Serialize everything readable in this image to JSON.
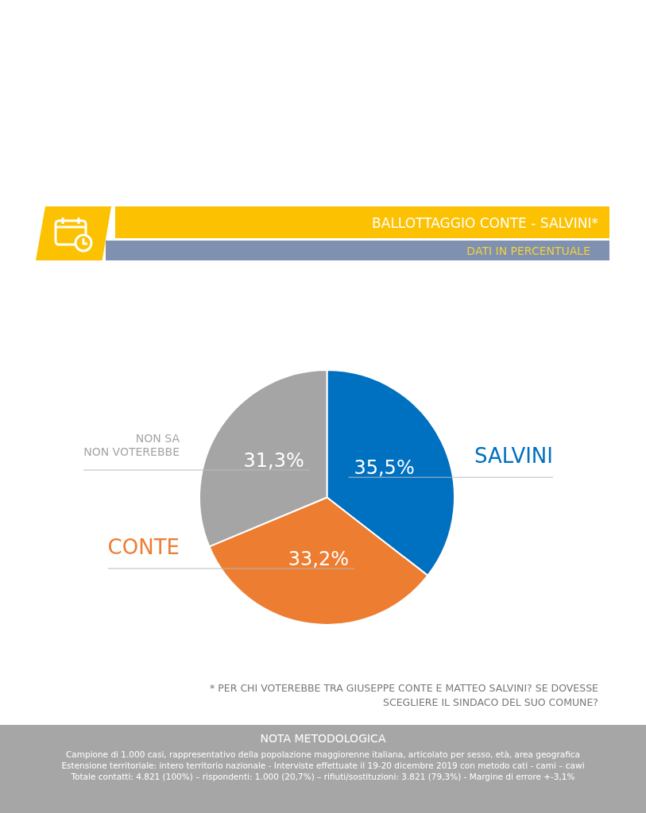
{
  "chart_data": {
    "type": "pie",
    "title": "BALLOTTAGGIO CONTE -  SALVINI*",
    "subtitle": "DATI IN PERCENTUALE",
    "categories": [
      "SALVINI",
      "CONTE",
      "NON SA NON VOTEREBBE"
    ],
    "values": [
      35.5,
      33.2,
      31.3
    ],
    "colors": [
      "#0070c0",
      "#ed7d31",
      "#a5a5a5"
    ],
    "value_labels": [
      "35,5%",
      "33,2%",
      "31,3%"
    ],
    "legend": false,
    "annotations": [
      "* PER CHI VOTEREBBE TRA GIUSEPPE CONTE E MATTEO SALVINI? SE DOVESSE SCEGLIERE IL SINDACO DEL SUO COMUNE?",
      "NOTA METODOLOGICA",
      "Campione di 1.000 casi, rappresentativo della popolazione maggiorenne italiana, articolato per sesso, età, area geografica",
      "Estensione territoriale: intero territorio nazionale  - Interviste effettuate il 19-20 dicembre 2019 con metodo cati - cami – cawi",
      "Totale contatti: 4.821 (100%) – rispondenti: 1.000 (20,7%) – rifiuti/sostituzioni: 3.821 (79,3%) - Margine di errore +-3,1%"
    ]
  }
}
